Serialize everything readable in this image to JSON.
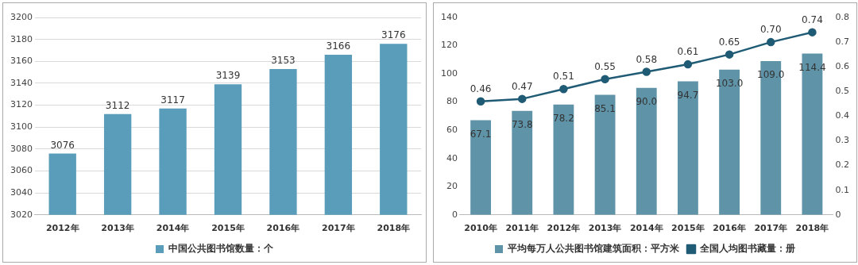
{
  "chart_data": [
    {
      "type": "bar",
      "categories": [
        "2012年",
        "2013年",
        "2014年",
        "2015年",
        "2016年",
        "2017年",
        "2018年"
      ],
      "series": [
        {
          "name": "中国公共图书馆数量：个",
          "color": "#5a9dbb",
          "values": [
            3076,
            3112,
            3117,
            3139,
            3153,
            3166,
            3176
          ]
        }
      ],
      "ylim": [
        3020,
        3200
      ],
      "yticks": [
        3020,
        3040,
        3060,
        3080,
        3100,
        3120,
        3140,
        3160,
        3180,
        3200
      ],
      "grid": "y",
      "legend": "bottom",
      "data_labels": true
    },
    {
      "type": "bar",
      "categories": [
        "2010年",
        "2011年",
        "2012年",
        "2013年",
        "2014年",
        "2015年",
        "2016年",
        "2017年",
        "2018年"
      ],
      "series": [
        {
          "name": "平均每万人公共图书馆建筑面积：平方米",
          "color": "#5f93a8",
          "values": [
            67.1,
            73.8,
            78.2,
            85.1,
            90.0,
            94.7,
            103.0,
            109.0,
            114.4
          ],
          "value_labels": [
            "67.1",
            "73.8",
            "78.2",
            "85.1",
            "90.0",
            "94.7",
            "103.0",
            "109.0",
            "114.4"
          ]
        },
        {
          "name": "全国人均图书藏量：册",
          "type": "line",
          "axis": "y2",
          "color": "#1f5b74",
          "values": [
            0.46,
            0.47,
            0.51,
            0.55,
            0.58,
            0.61,
            0.65,
            0.7,
            0.74
          ],
          "value_labels": [
            "0.46",
            "0.47",
            "0.51",
            "0.55",
            "0.58",
            "0.61",
            "0.65",
            "0.70",
            "0.74"
          ]
        }
      ],
      "ylim": [
        0,
        140
      ],
      "yticks": [
        0,
        20,
        40,
        60,
        80,
        100,
        120,
        140
      ],
      "y2lim": [
        0,
        0.8
      ],
      "y2ticks": [
        0,
        0.1,
        0.2,
        0.3,
        0.4,
        0.5,
        0.6,
        0.7,
        0.8
      ],
      "legend": "bottom",
      "marker": "circle"
    }
  ]
}
